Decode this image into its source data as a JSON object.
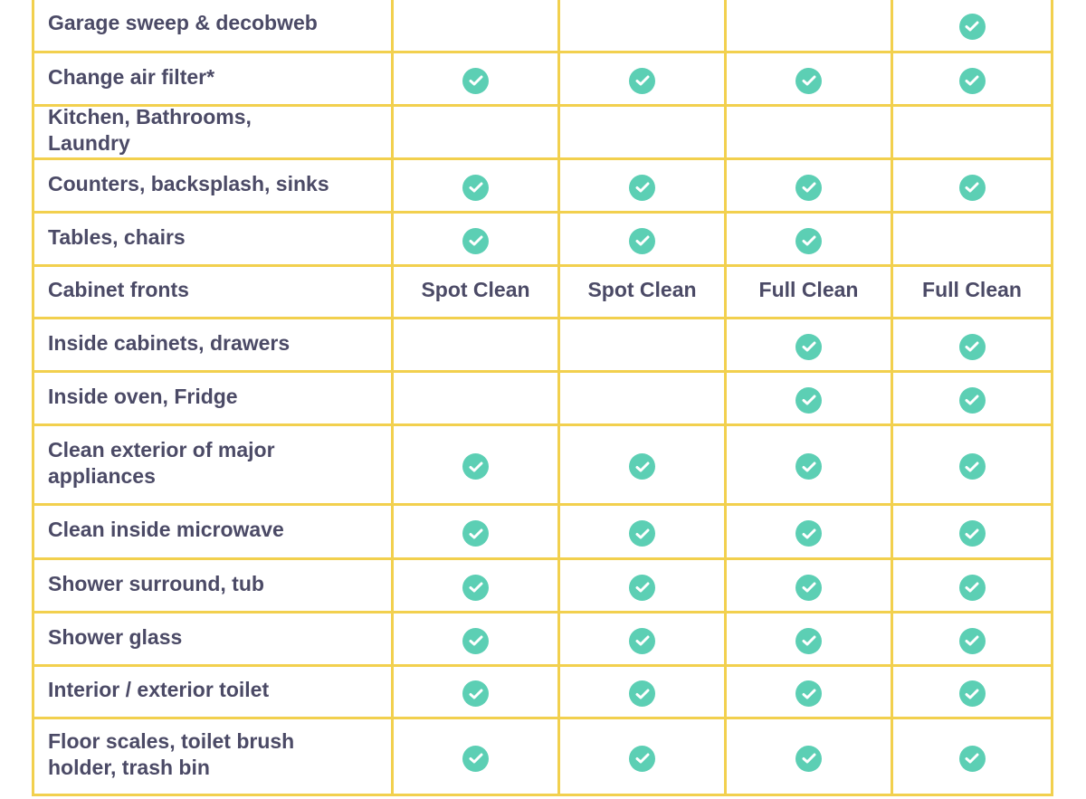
{
  "colors": {
    "border": "#f2d04e",
    "check": "#5ccfb4",
    "text": "#4b4a66"
  },
  "rows": [
    {
      "task": "Garage sweep & decobweb",
      "cells": [
        "",
        "",
        "",
        "check"
      ]
    },
    {
      "task": "Change air filter*",
      "cells": [
        "check",
        "check",
        "check",
        "check"
      ]
    },
    {
      "task": "Kitchen, Bathrooms, Laundry",
      "cells": [
        "",
        "",
        "",
        ""
      ]
    },
    {
      "task": "Counters, backsplash, sinks",
      "cells": [
        "check",
        "check",
        "check",
        "check"
      ]
    },
    {
      "task": "Tables, chairs",
      "cells": [
        "check",
        "check",
        "check",
        ""
      ]
    },
    {
      "task": "Cabinet fronts",
      "cells": [
        "Spot Clean",
        "Spot Clean",
        "Full Clean",
        "Full Clean"
      ]
    },
    {
      "task": "Inside cabinets, drawers",
      "cells": [
        "",
        "",
        "check",
        "check"
      ]
    },
    {
      "task": "Inside oven, Fridge",
      "cells": [
        "",
        "",
        "check",
        "check"
      ]
    },
    {
      "task": "Clean exterior of major appliances",
      "cells": [
        "check",
        "check",
        "check",
        "check"
      ]
    },
    {
      "task": "Clean inside microwave",
      "cells": [
        "check",
        "check",
        "check",
        "check"
      ]
    },
    {
      "task": "Shower surround, tub",
      "cells": [
        "check",
        "check",
        "check",
        "check"
      ]
    },
    {
      "task": "Shower glass",
      "cells": [
        "check",
        "check",
        "check",
        "check"
      ]
    },
    {
      "task": "Interior / exterior toilet",
      "cells": [
        "check",
        "check",
        "check",
        "check"
      ]
    },
    {
      "task": "Floor scales, toilet brush holder, trash bin",
      "cells": [
        "check",
        "check",
        "check",
        "check"
      ]
    }
  ]
}
